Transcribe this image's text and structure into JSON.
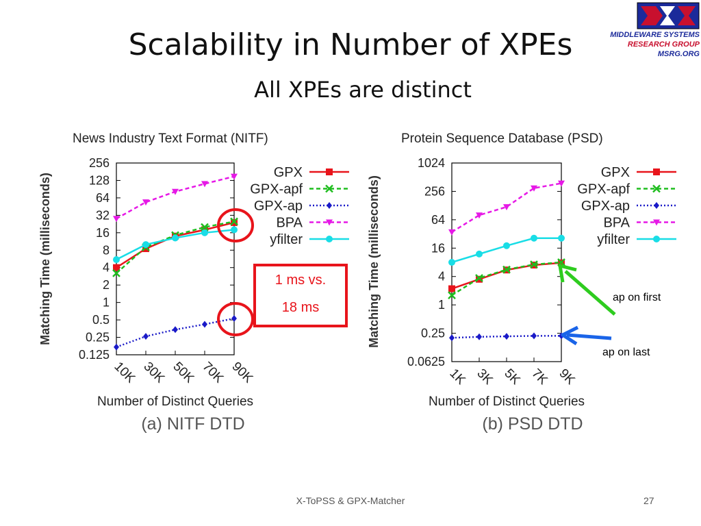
{
  "slide": {
    "title": "Scalability in Number of XPEs",
    "subtitle": "All XPEs are distinct",
    "footer": "X-ToPSS & GPX-Matcher",
    "page_number": "27"
  },
  "logo": {
    "line1": "MIDDLEWARE SYSTEMS",
    "line2": "RESEARCH GROUP",
    "line3": "MSRG.ORG",
    "colors": {
      "blue": "#1b2a9a",
      "red": "#c8102e"
    }
  },
  "annotations": {
    "box_line1": "1 ms vs.",
    "box_line2": "18 ms",
    "ap_first": "ap on first",
    "ap_last": "ap on last",
    "colors": {
      "box": "#e8141b",
      "first_arrow": "#2ecc1f",
      "last_arrow": "#1a64e8"
    }
  },
  "chart_data": [
    {
      "type": "line",
      "title": "News Industry Text Format (NITF)",
      "caption": "(a) NITF DTD",
      "xlabel": "Number of Distinct Queries",
      "ylabel": "Matching Time (milliseconds)",
      "yscale": "log2",
      "ylim": [
        0.125,
        256
      ],
      "yticks": [
        "0.125",
        "0.25",
        "0.5",
        "1",
        "2",
        "4",
        "8",
        "16",
        "32",
        "64",
        "128",
        "256"
      ],
      "categories": [
        "10K",
        "30K",
        "50K",
        "70K",
        "90K"
      ],
      "legend": "top-right",
      "series": [
        {
          "name": "GPX",
          "color": "#e8141b",
          "dash": "solid",
          "marker": "square",
          "values": [
            4,
            8.5,
            14,
            18,
            24
          ]
        },
        {
          "name": "GPX-apf",
          "color": "#1fbd1f",
          "dash": "dashed",
          "marker": "x",
          "values": [
            3.2,
            9,
            14.5,
            20,
            25
          ]
        },
        {
          "name": "GPX-ap",
          "color": "#1a1ac8",
          "dash": "dotted",
          "marker": "diamond",
          "values": [
            0.17,
            0.26,
            0.34,
            0.42,
            0.53
          ]
        },
        {
          "name": "BPA",
          "color": "#e619e6",
          "dash": "dashed",
          "marker": "triangle-down",
          "values": [
            28,
            54,
            82,
            112,
            150
          ]
        },
        {
          "name": "yfilter",
          "color": "#19dde6",
          "dash": "solid",
          "marker": "circle",
          "values": [
            5.5,
            10,
            13,
            16,
            18
          ]
        }
      ]
    },
    {
      "type": "line",
      "title": "Protein Sequence Database (PSD)",
      "caption": "(b) PSD DTD",
      "xlabel": "Number of Distinct Queries",
      "ylabel": "Matching Time (milliseconds)",
      "yscale": "log2",
      "ylim": [
        0.0625,
        1024
      ],
      "yticks": [
        "0.0625",
        "0.25",
        "1",
        "4",
        "16",
        "64",
        "256",
        "1024"
      ],
      "categories": [
        "1K",
        "3K",
        "5K",
        "7K",
        "9K"
      ],
      "legend": "top-right",
      "series": [
        {
          "name": "GPX",
          "color": "#e8141b",
          "dash": "solid",
          "marker": "square",
          "values": [
            2.2,
            3.5,
            5.5,
            7,
            7.8
          ]
        },
        {
          "name": "GPX-apf",
          "color": "#1fbd1f",
          "dash": "dashed",
          "marker": "x",
          "values": [
            1.6,
            3.7,
            5.6,
            7.2,
            8
          ]
        },
        {
          "name": "GPX-ap",
          "color": "#1a1ac8",
          "dash": "dotted",
          "marker": "diamond",
          "values": [
            0.2,
            0.21,
            0.215,
            0.22,
            0.22
          ]
        },
        {
          "name": "BPA",
          "color": "#e619e6",
          "dash": "dashed",
          "marker": "triangle-down",
          "values": [
            35,
            80,
            120,
            300,
            380
          ]
        },
        {
          "name": "yfilter",
          "color": "#19dde6",
          "dash": "solid",
          "marker": "circle",
          "values": [
            8,
            12,
            18,
            26,
            26
          ]
        }
      ]
    }
  ]
}
